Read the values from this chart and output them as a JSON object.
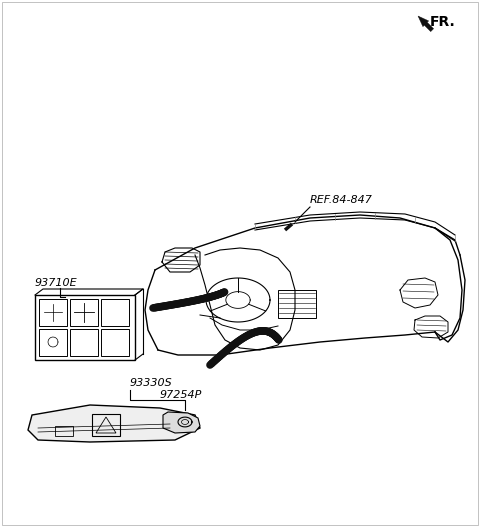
{
  "bg_color": "#ffffff",
  "line_color": "#000000",
  "fr_label": "FR.",
  "ref_label": "REF.84-847",
  "label_93710E": "93710E",
  "label_93330S": "93330S",
  "label_97254P": "97254P"
}
